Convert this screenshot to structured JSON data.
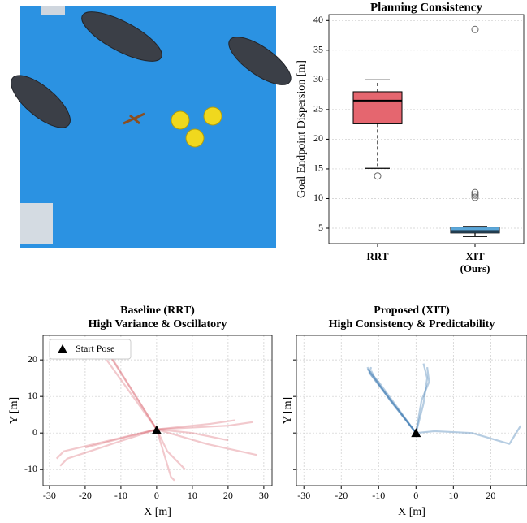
{
  "chart_data": [
    {
      "type": "box",
      "title": "Planning Consistency",
      "ylabel": "Goal Endpoint Dispersion [m]",
      "categories": [
        "RRT",
        "XIT\n(Ours)"
      ],
      "boxes": [
        {
          "whislo": 15.1,
          "q1": 22.6,
          "med": 26.5,
          "q3": 28.0,
          "whishi": 30.0,
          "fliers": [
            13.8
          ],
          "color": "#e5666f"
        },
        {
          "whislo": 3.6,
          "q1": 4.2,
          "med": 4.5,
          "q3": 5.2,
          "whishi": 5.3,
          "fliers": [
            10.2,
            10.6,
            11.0,
            38.5
          ],
          "color": "#5ba7d9"
        }
      ],
      "ylim": [
        2.4,
        41
      ],
      "yticks": [
        5,
        10,
        15,
        20,
        25,
        30,
        35,
        40
      ],
      "grid": true
    },
    {
      "type": "line",
      "title": "Baseline (RRT)",
      "subtitle": "High Variance & Oscillatory",
      "xlabel": "X [m]",
      "ylabel": "Y [m]",
      "color": "#d9646f",
      "paths": [
        {
          "x": [
            0,
            -13
          ],
          "y": [
            1,
            21
          ]
        },
        {
          "x": [
            0,
            -14
          ],
          "y": [
            1,
            20
          ]
        },
        {
          "x": [
            0,
            -12.5
          ],
          "y": [
            1,
            20.5
          ]
        },
        {
          "x": [
            0,
            -26,
            -28
          ],
          "y": [
            1,
            -5,
            -7
          ]
        },
        {
          "x": [
            0,
            -25,
            -27
          ],
          "y": [
            1,
            -7,
            -9
          ]
        },
        {
          "x": [
            0,
            -20
          ],
          "y": [
            1,
            -4
          ]
        },
        {
          "x": [
            0,
            14,
            28
          ],
          "y": [
            1,
            -3,
            -6
          ]
        },
        {
          "x": [
            0,
            20,
            27
          ],
          "y": [
            1,
            2,
            3
          ]
        },
        {
          "x": [
            0,
            15,
            22
          ],
          "y": [
            1,
            2.5,
            3.5
          ]
        },
        {
          "x": [
            0,
            10,
            20
          ],
          "y": [
            1,
            0,
            -2
          ]
        },
        {
          "x": [
            0,
            3,
            8
          ],
          "y": [
            1,
            -5,
            -10
          ]
        },
        {
          "x": [
            0,
            4,
            5
          ],
          "y": [
            1,
            -12,
            -13
          ]
        }
      ],
      "marker": {
        "name": "Start Pose",
        "x": 0,
        "y": 0.8
      },
      "legend": "upper left",
      "xlim": [
        -31.8,
        32.3
      ],
      "ylim": [
        -14.4,
        26.7
      ],
      "xticks": [
        -30,
        -20,
        -10,
        0,
        10,
        20,
        30
      ],
      "yticks": [
        -10,
        0,
        10,
        20
      ],
      "grid": true
    },
    {
      "type": "line",
      "title": "Proposed (XIT)",
      "subtitle": "High Consistency & Predictability",
      "xlabel": "X [m]",
      "ylabel": "Y [m]",
      "color": "#2f6fad",
      "paths": [
        {
          "x": [
            0,
            -6,
            -12,
            -13
          ],
          "y": [
            0,
            8,
            16,
            18
          ]
        },
        {
          "x": [
            0,
            -7,
            -11,
            -12
          ],
          "y": [
            0,
            9,
            15,
            17
          ]
        },
        {
          "x": [
            0,
            -5,
            -10,
            -13
          ],
          "y": [
            0,
            7,
            14,
            17.5
          ]
        },
        {
          "x": [
            0,
            -6.5,
            -12.5,
            -12
          ],
          "y": [
            0,
            8.5,
            16.5,
            18
          ]
        },
        {
          "x": [
            0,
            2,
            3,
            2
          ],
          "y": [
            0,
            8,
            15,
            19
          ]
        },
        {
          "x": [
            0,
            1.5,
            3.5,
            3
          ],
          "y": [
            0,
            9,
            14,
            18
          ]
        },
        {
          "x": [
            0,
            5,
            15,
            25,
            28
          ],
          "y": [
            0,
            0.5,
            0,
            -3,
            2
          ]
        }
      ],
      "marker": {
        "name": "Start Pose",
        "x": 0,
        "y": 0
      },
      "sharey": true,
      "xlim": [
        -32,
        29.7
      ],
      "ylim": [
        -14.4,
        26.7
      ],
      "xticks": [
        -30,
        -20,
        -10,
        0,
        10,
        20
      ],
      "yticks": [
        -10,
        0,
        10,
        20
      ],
      "grid": true
    }
  ]
}
